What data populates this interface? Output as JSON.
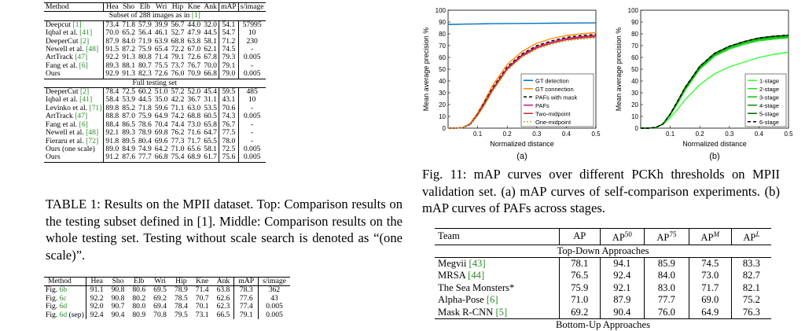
{
  "table1": {
    "headers": [
      "Method",
      "Hea",
      "Sho",
      "Elb",
      "Wri",
      "Hip",
      "Kne",
      "Ank",
      "mAP",
      "s/image"
    ],
    "subset_title": "Subset of 288 images as in [1]",
    "subset_rows": [
      {
        "method": "Deepcut [1]",
        "vals": [
          "73.4",
          "71.8",
          "57.9",
          "39.9",
          "56.7",
          "44.0",
          "32.0",
          "54.1",
          "57995"
        ],
        "bold": []
      },
      {
        "method": "Iqbal et al. [41]",
        "vals": [
          "70.0",
          "65.2",
          "56.4",
          "46.1",
          "52.7",
          "47.9",
          "44.5",
          "54.7",
          "10"
        ],
        "bold": []
      },
      {
        "method": "DeeperCut [2]",
        "vals": [
          "87.9",
          "84.0",
          "71.9",
          "63.9",
          "68.8",
          "63.8",
          "58.1",
          "71.2",
          "230"
        ],
        "bold": []
      },
      {
        "method": "Newell et al. [48]",
        "vals": [
          "91.5",
          "87.2",
          "75.9",
          "65.4",
          "72.2",
          "67.0",
          "62.1",
          "74.5",
          "-"
        ],
        "bold": []
      },
      {
        "method": "ArtTrack [47]",
        "vals": [
          "92.2",
          "91.3",
          "80.8",
          "71.4",
          "79.1",
          "72.6",
          "67.8",
          "79.3",
          "0.005"
        ],
        "bold": [
          1,
          4,
          7,
          8
        ]
      },
      {
        "method": "Fang et al. [6]",
        "vals": [
          "89.3",
          "88.1",
          "80.7",
          "75.5",
          "73.7",
          "76.7",
          "70.0",
          "79.1",
          "-"
        ],
        "bold": [
          3,
          5,
          6
        ]
      },
      {
        "method": "Ours",
        "vals": [
          "92.9",
          "91.3",
          "82.3",
          "72.6",
          "76.0",
          "70.9",
          "66.8",
          "79.0",
          "0.005"
        ],
        "bold": [
          0,
          1,
          2,
          8
        ]
      }
    ],
    "full_title": "Full testing set",
    "full_rows": [
      {
        "method": "DeeperCut [2]",
        "vals": [
          "78.4",
          "72.5",
          "60.2",
          "51.0",
          "57.2",
          "52.0",
          "45.4",
          "59.5",
          "485"
        ],
        "bold": []
      },
      {
        "method": "Iqbal et al. [41]",
        "vals": [
          "58.4",
          "53.9",
          "44.5",
          "35.0",
          "42.2",
          "36.7",
          "31.1",
          "43.1",
          "10"
        ],
        "bold": []
      },
      {
        "method": "Levinko et al. [71]",
        "vals": [
          "89.8",
          "85.2",
          "71.8",
          "59.6",
          "71.1",
          "63.0",
          "53.5",
          "70.6",
          "-"
        ],
        "bold": []
      },
      {
        "method": "ArtTrack [47]",
        "vals": [
          "88.8",
          "87.0",
          "75.9",
          "64.9",
          "74.2",
          "68.8",
          "60.5",
          "74.3",
          "0.005"
        ],
        "bold": [
          8
        ]
      },
      {
        "method": "Fang et al. [6]",
        "vals": [
          "88.4",
          "86.5",
          "78.6",
          "70.4",
          "74.4",
          "73.0",
          "65.8",
          "76.7",
          "-"
        ],
        "bold": [
          3,
          6
        ]
      },
      {
        "method": "Newell et al. [48]",
        "vals": [
          "92.1",
          "89.3",
          "78.9",
          "69.8",
          "76.2",
          "71.6",
          "64.7",
          "77.5",
          "-"
        ],
        "bold": [
          0
        ]
      },
      {
        "method": "Fieraru et al. [72]",
        "vals": [
          "91.8",
          "89.5",
          "80.4",
          "69.6",
          "77.3",
          "71.7",
          "65.5",
          "78.0",
          "-"
        ],
        "bold": [
          1,
          2,
          4,
          7
        ]
      },
      {
        "method": "Ours (one scale)",
        "vals": [
          "89.0",
          "84.9",
          "74.9",
          "64.2",
          "71.0",
          "65.6",
          "58.1",
          "72.5",
          "0.005"
        ],
        "bold": []
      },
      {
        "method": "Ours",
        "vals": [
          "91.2",
          "87.6",
          "77.7",
          "66.8",
          "75.4",
          "68.9",
          "61.7",
          "75.6",
          "0.005"
        ],
        "bold": []
      }
    ]
  },
  "table1_caption": "TABLE 1: Results on the MPII dataset. Top: Comparison results on the testing subset defined in [1]. Middle: Comparison results on the whole testing set. Testing without scale search is denoted as “(one scale)”.",
  "table2": {
    "headers": [
      "Method",
      "Hea",
      "Sho",
      "Elb",
      "Wri",
      "Hip",
      "Kne",
      "Ank",
      "mAP",
      "s/image"
    ],
    "rows": [
      {
        "method": "Fig. 6b",
        "vals": [
          "91.1",
          "90.8",
          "80.6",
          "69.5",
          "78.9",
          "71.4",
          "63.8",
          "78.3",
          "362"
        ],
        "bold": [
          1
        ]
      },
      {
        "method": "Fig. 6c",
        "vals": [
          "92.2",
          "90.8",
          "80.2",
          "69.2",
          "78.5",
          "70.7",
          "62.6",
          "77.6",
          "43"
        ],
        "bold": [
          1
        ]
      },
      {
        "method": "Fig. 6d",
        "vals": [
          "92.0",
          "90.7",
          "80.0",
          "69.4",
          "78.4",
          "70.1",
          "62.3",
          "77.4",
          "0.005"
        ],
        "bold": []
      },
      {
        "method": "Fig. 6d (sep)",
        "vals": [
          "92.4",
          "90.4",
          "80.9",
          "70.8",
          "79.5",
          "73.1",
          "66.5",
          "79.1",
          "0.005"
        ],
        "bold": [
          0,
          2,
          3,
          4,
          5,
          6,
          7,
          8
        ]
      }
    ]
  },
  "fig11": {
    "caption": "Fig. 11: mAP curves over different PCKh thresholds on MPII validation set. (a) mAP curves of self-comparison experiments. (b) mAP curves of PAFs across stages.",
    "label_a": "(a)",
    "label_b": "(b)"
  },
  "table3": {
    "headers": [
      "Team",
      "AP",
      "AP50",
      "AP75",
      "APM",
      "APL"
    ],
    "section": "Top-Down Approaches",
    "rows": [
      {
        "team": "Megvii [43]",
        "vals": [
          "78.1",
          "94.1",
          "85.9",
          "74.5",
          "83.3"
        ]
      },
      {
        "team": "MRSA [44]",
        "vals": [
          "76.5",
          "92.4",
          "84.0",
          "73.0",
          "82.7"
        ]
      },
      {
        "team": "The Sea Monsters*",
        "vals": [
          "75.9",
          "92.1",
          "83.0",
          "71.7",
          "82.1"
        ]
      },
      {
        "team": "Alpha-Pose [6]",
        "vals": [
          "71.0",
          "87.9",
          "77.7",
          "69.0",
          "75.2"
        ]
      },
      {
        "team": "Mask R-CNN [5]",
        "vals": [
          "69.2",
          "90.4",
          "76.0",
          "64.9",
          "76.3"
        ]
      }
    ],
    "next_section": "Bottom-Up Approaches"
  },
  "chart_data": [
    {
      "type": "line",
      "xlabel": "Normalized distance",
      "ylabel": "Mean average precision %",
      "xticks": [
        "0.1",
        "0.2",
        "0.3",
        "0.4",
        "0.5"
      ],
      "yticks": [
        "0",
        "10",
        "20",
        "30",
        "40",
        "50",
        "60",
        "70",
        "80",
        "90",
        "100"
      ],
      "xlim": [
        0,
        0.5
      ],
      "ylim": [
        0,
        100
      ],
      "legend_position": "bottom-right",
      "x": [
        0,
        0.025,
        0.05,
        0.075,
        0.1,
        0.125,
        0.15,
        0.2,
        0.25,
        0.3,
        0.35,
        0.4,
        0.45,
        0.5
      ],
      "series": [
        {
          "name": "GT detection",
          "color": "#0072bd",
          "dash": "",
          "values": [
            88,
            88,
            88.2,
            88.3,
            88.4,
            88.5,
            88.6,
            88.7,
            88.8,
            88.9,
            89,
            89.1,
            89.2,
            89.3
          ]
        },
        {
          "name": "GT connection",
          "color": "#ff8c00",
          "dash": "",
          "values": [
            0,
            0,
            0.5,
            4,
            13,
            24,
            36,
            54,
            65,
            72,
            76,
            78.5,
            80,
            81
          ]
        },
        {
          "name": "PAFs with mask",
          "color": "#000000",
          "dash": "4,3",
          "values": [
            0,
            0,
            0.5,
            3.5,
            12,
            23,
            34,
            52,
            63,
            70,
            74,
            77,
            78.5,
            79.5
          ]
        },
        {
          "name": "PAFs",
          "color": "#c71585",
          "dash": "",
          "values": [
            0,
            0,
            0.5,
            3.5,
            11.5,
            22,
            33,
            51,
            62,
            69,
            73,
            76,
            77.5,
            78.5
          ]
        },
        {
          "name": "Two-midpoint",
          "color": "#d62728",
          "dash": "",
          "values": [
            0,
            0,
            0.5,
            3,
            11,
            21,
            32,
            50,
            61,
            68,
            72,
            75,
            76.5,
            77.5
          ]
        },
        {
          "name": "One-midpoint",
          "color": "#9acd32",
          "dash": "2,2",
          "values": [
            0,
            0,
            0.5,
            3,
            10.5,
            20,
            31,
            49,
            60,
            67,
            71,
            74,
            75.5,
            76.5
          ]
        }
      ]
    },
    {
      "type": "line",
      "xlabel": "Normalized distance",
      "ylabel": "Mean average precision %",
      "xticks": [
        "0.1",
        "0.2",
        "0.3",
        "0.4",
        "0.5"
      ],
      "yticks": [
        "0",
        "10",
        "20",
        "30",
        "40",
        "50",
        "60",
        "70",
        "80",
        "90",
        "100"
      ],
      "xlim": [
        0,
        0.5
      ],
      "ylim": [
        0,
        100
      ],
      "legend_position": "bottom-right",
      "x": [
        0,
        0.025,
        0.05,
        0.075,
        0.1,
        0.125,
        0.15,
        0.2,
        0.25,
        0.3,
        0.35,
        0.4,
        0.45,
        0.5
      ],
      "series": [
        {
          "name": "1-stage",
          "color": "#33ff33",
          "dash": "",
          "values": [
            0,
            0,
            0.5,
            3,
            9,
            16,
            24,
            37,
            46,
            52,
            56,
            60,
            62.5,
            64.5
          ]
        },
        {
          "name": "2-stage",
          "color": "#22dd22",
          "dash": "",
          "values": [
            0,
            0,
            0.5,
            3.5,
            11,
            21,
            32,
            50,
            61,
            67,
            71,
            74,
            75.5,
            76.5
          ]
        },
        {
          "name": "3-stage",
          "color": "#11bb11",
          "dash": "",
          "values": [
            0,
            0,
            0.5,
            3.5,
            11.5,
            22,
            33,
            51,
            62,
            68,
            72,
            75,
            76.5,
            77.5
          ]
        },
        {
          "name": "4-stage",
          "color": "#009900",
          "dash": "",
          "values": [
            0,
            0,
            0.5,
            3.5,
            12,
            22.5,
            34,
            52,
            63,
            69,
            73,
            76,
            77.5,
            78.3
          ]
        },
        {
          "name": "5-stage",
          "color": "#006600",
          "dash": "",
          "values": [
            0,
            0,
            0.5,
            3.5,
            12,
            23,
            34.5,
            52.5,
            63.5,
            69.5,
            73.5,
            76.5,
            78,
            78.8
          ]
        },
        {
          "name": "6-stage",
          "color": "#000000",
          "dash": "4,3",
          "values": [
            0,
            0,
            0.5,
            3.5,
            12,
            23,
            34.5,
            52.5,
            63.5,
            69.5,
            73.5,
            76.5,
            78,
            79
          ]
        }
      ]
    }
  ]
}
